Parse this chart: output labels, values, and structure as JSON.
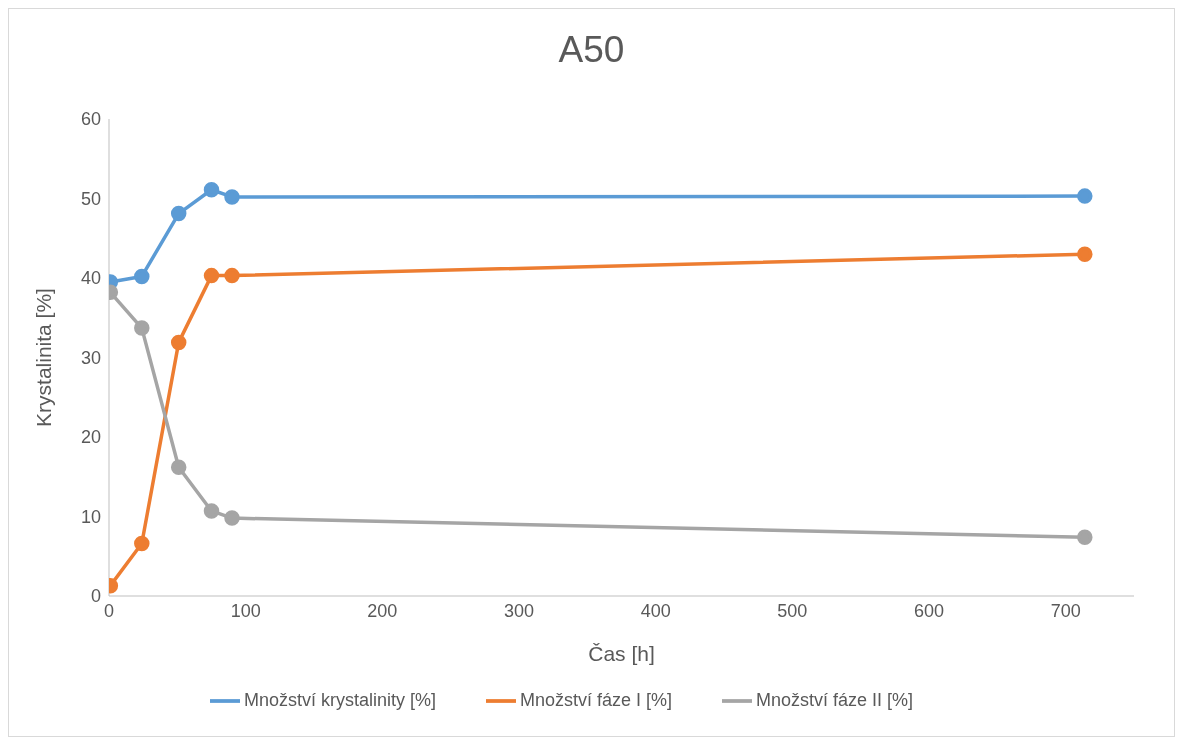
{
  "chart_data": {
    "type": "line",
    "title": "A50",
    "xlabel": "Čas [h]",
    "ylabel": "Krystalinita [%]",
    "x": [
      1,
      24,
      51,
      75,
      90,
      714
    ],
    "series": [
      {
        "name": "Množství krystalinity [%]",
        "color": "#5b9bd5",
        "values": [
          39.5,
          40.2,
          48.1,
          51.1,
          50.2,
          50.3
        ]
      },
      {
        "name": "Množství fáze I [%]",
        "color": "#ed7d31",
        "values": [
          1.3,
          6.6,
          31.9,
          40.3,
          40.3,
          43.0
        ]
      },
      {
        "name": "Množství fáze II [%]",
        "color": "#a5a5a5",
        "values": [
          38.2,
          33.7,
          16.2,
          10.7,
          9.8,
          7.4
        ]
      }
    ],
    "xlim": [
      0,
      750
    ],
    "xticks": [
      0,
      100,
      200,
      300,
      400,
      500,
      600,
      700
    ],
    "ylim": [
      0,
      60
    ],
    "yticks": [
      0,
      10,
      20,
      30,
      40,
      50,
      60
    ],
    "grid": false,
    "legend": "bottom",
    "marker": "circle",
    "line_style": "solid"
  }
}
